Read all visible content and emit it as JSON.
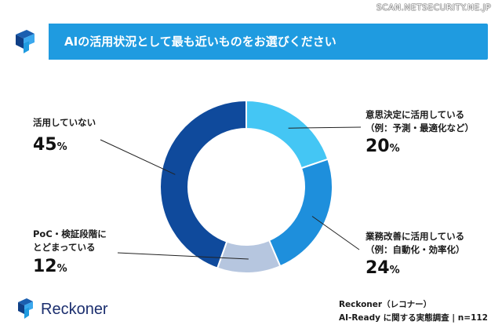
{
  "watermark": "SCAN.NETSECURITY.NE.JP",
  "header": {
    "title": "AIの活用状況として最も近いものをお選びください"
  },
  "chart_data": {
    "type": "pie",
    "variant": "donut",
    "title": "AIの活用状況として最も近いものをお選びください",
    "unit": "%",
    "slices": [
      {
        "label_lines": [
          "意思決定に活用している",
          "（例：予測・最適化など）"
        ],
        "value": 20,
        "value_text": "20",
        "color": "#44c6f4"
      },
      {
        "label_lines": [
          "業務改善に活用している",
          "（例：自動化・効率化）"
        ],
        "value": 24,
        "value_text": "24",
        "color": "#1e8fdc"
      },
      {
        "label_lines": [
          "PoC・検証段階に",
          "とどまっている"
        ],
        "value": 12,
        "value_text": "12",
        "color": "#b6c6df"
      },
      {
        "label_lines": [
          "活用していない"
        ],
        "value": 45,
        "value_text": "45",
        "color": "#0f4a9c"
      }
    ],
    "n": "n=112"
  },
  "footer": {
    "brand": "Reckoner",
    "source_line1": "Reckoner（レコナー）",
    "source_line2": "AI-Ready に関する実態調査 | n=112"
  },
  "colors": {
    "header_bg": "#1f9be0",
    "brand_dark": "#1b2e6e"
  }
}
